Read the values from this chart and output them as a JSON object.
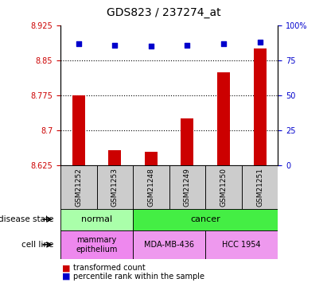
{
  "title": "GDS823 / 237274_at",
  "samples": [
    "GSM21252",
    "GSM21253",
    "GSM21248",
    "GSM21249",
    "GSM21250",
    "GSM21251"
  ],
  "bar_values": [
    8.775,
    8.657,
    8.655,
    8.725,
    8.825,
    8.875
  ],
  "percentile_values": [
    87,
    86,
    85,
    86,
    87,
    88
  ],
  "y_min": 8.625,
  "y_max": 8.925,
  "y_ticks": [
    8.625,
    8.7,
    8.775,
    8.85,
    8.925
  ],
  "y_tick_labels": [
    "8.625",
    "8.7",
    "8.775",
    "8.85",
    "8.925"
  ],
  "y2_ticks": [
    0,
    25,
    50,
    75,
    100
  ],
  "y2_tick_labels": [
    "0",
    "25",
    "50",
    "75",
    "100%"
  ],
  "bar_color": "#cc0000",
  "scatter_color": "#0000cc",
  "bar_width": 0.35,
  "normal_color": "#aaffaa",
  "cancer_color": "#44ee44",
  "cell_mam_color": "#ee88ee",
  "cell_mda_color": "#ee99ee",
  "cell_hcc_color": "#ee99ee",
  "xlabel_bg_color": "#cccccc",
  "tick_label_color_left": "#cc0000",
  "tick_label_color_right": "#0000cc"
}
